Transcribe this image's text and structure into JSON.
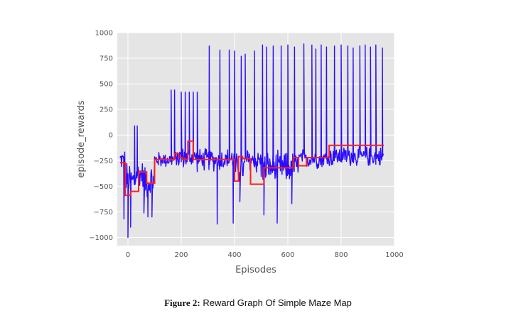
{
  "chart_data": {
    "type": "line",
    "title": "",
    "xlabel": "Episodes",
    "ylabel": "episode_rewards",
    "xlim": [
      -40,
      1000
    ],
    "ylim": [
      -1080,
      1000
    ],
    "xticks": [
      0,
      200,
      400,
      600,
      800,
      1000
    ],
    "yticks": [
      -1000,
      -750,
      -500,
      -250,
      0,
      250,
      500,
      750,
      1000
    ],
    "xtick_labels": [
      "0",
      "200",
      "400",
      "600",
      "800",
      "1000"
    ],
    "ytick_labels": [
      "−1000",
      "−750",
      "−500",
      "−250",
      "0",
      "250",
      "500",
      "750",
      "1000"
    ],
    "grid": true,
    "background": "#e5e5e5",
    "series": [
      {
        "color": "#2a0cff",
        "description_points": "raw per-episode reward, noisy; densely sampled",
        "x_range": [
          -30,
          960
        ],
        "noise_segments": [
          {
            "x": [
              -30,
              -10
            ],
            "center": -240,
            "spread": 110
          },
          {
            "x": [
              -10,
              30
            ],
            "center": -450,
            "spread": 220
          },
          {
            "x": [
              30,
              60
            ],
            "center": -380,
            "spread": 160
          },
          {
            "x": [
              60,
              100
            ],
            "center": -450,
            "spread": 190
          },
          {
            "x": [
              100,
              180
            ],
            "center": -240,
            "spread": 90
          },
          {
            "x": [
              180,
              260
            ],
            "center": -220,
            "spread": 120
          },
          {
            "x": [
              260,
              400
            ],
            "center": -240,
            "spread": 130
          },
          {
            "x": [
              400,
              440
            ],
            "center": -330,
            "spread": 180
          },
          {
            "x": [
              440,
              500
            ],
            "center": -250,
            "spread": 150
          },
          {
            "x": [
              500,
              640
            ],
            "center": -320,
            "spread": 180
          },
          {
            "x": [
              640,
              760
            ],
            "center": -230,
            "spread": 110
          },
          {
            "x": [
              760,
              960
            ],
            "center": -210,
            "spread": 110
          }
        ],
        "spikes": [
          {
            "x": 25,
            "y": 90
          },
          {
            "x": 35,
            "y": 90
          },
          {
            "x": 162,
            "y": 440
          },
          {
            "x": 175,
            "y": 440
          },
          {
            "x": 200,
            "y": 420
          },
          {
            "x": 215,
            "y": 420
          },
          {
            "x": 230,
            "y": 420
          },
          {
            "x": 245,
            "y": 420
          },
          {
            "x": 260,
            "y": 420
          },
          {
            "x": 305,
            "y": 870
          },
          {
            "x": 345,
            "y": 830
          },
          {
            "x": 380,
            "y": 830
          },
          {
            "x": 400,
            "y": 820
          },
          {
            "x": 425,
            "y": 770
          },
          {
            "x": 440,
            "y": 790
          },
          {
            "x": 475,
            "y": 820
          },
          {
            "x": 505,
            "y": 880
          },
          {
            "x": 520,
            "y": 860
          },
          {
            "x": 545,
            "y": 870
          },
          {
            "x": 575,
            "y": 870
          },
          {
            "x": 600,
            "y": 880
          },
          {
            "x": 625,
            "y": 860
          },
          {
            "x": 660,
            "y": 890
          },
          {
            "x": 690,
            "y": 880
          },
          {
            "x": 705,
            "y": 840
          },
          {
            "x": 725,
            "y": 880
          },
          {
            "x": 745,
            "y": 860
          },
          {
            "x": 775,
            "y": 870
          },
          {
            "x": 800,
            "y": 880
          },
          {
            "x": 825,
            "y": 870
          },
          {
            "x": 845,
            "y": 850
          },
          {
            "x": 870,
            "y": 870
          },
          {
            "x": 890,
            "y": 880
          },
          {
            "x": 910,
            "y": 860
          },
          {
            "x": 930,
            "y": 880
          },
          {
            "x": 955,
            "y": 850
          }
        ],
        "dips": [
          {
            "x": -15,
            "y": -820
          },
          {
            "x": 0,
            "y": -1000
          },
          {
            "x": 10,
            "y": -900
          },
          {
            "x": 60,
            "y": -760
          },
          {
            "x": 75,
            "y": -800
          },
          {
            "x": 90,
            "y": -800
          },
          {
            "x": 335,
            "y": -870
          },
          {
            "x": 395,
            "y": -860
          },
          {
            "x": 420,
            "y": -650
          },
          {
            "x": 510,
            "y": -780
          },
          {
            "x": 560,
            "y": -860
          },
          {
            "x": 615,
            "y": -670
          }
        ]
      },
      {
        "color": "#ff1f1f",
        "description_points": "stepped moving average",
        "x": [
          -30,
          -10,
          -10,
          10,
          10,
          40,
          40,
          70,
          70,
          100,
          100,
          175,
          175,
          190,
          190,
          205,
          205,
          225,
          225,
          245,
          245,
          400,
          400,
          415,
          415,
          430,
          430,
          460,
          460,
          490,
          490,
          510,
          510,
          620,
          620,
          640,
          640,
          670,
          670,
          700,
          700,
          755,
          755,
          960
        ],
        "y": [
          -270,
          -270,
          -590,
          -590,
          -550,
          -550,
          -360,
          -360,
          -470,
          -470,
          -240,
          -240,
          -180,
          -180,
          -220,
          -220,
          -240,
          -240,
          -60,
          -60,
          -240,
          -240,
          -450,
          -450,
          -210,
          -210,
          -230,
          -230,
          -480,
          -480,
          -480,
          -480,
          -320,
          -320,
          -220,
          -220,
          -300,
          -300,
          -220,
          -220,
          -220,
          -220,
          -100,
          -100
        ]
      }
    ]
  },
  "caption": {
    "label": "Figure 2:",
    "text": "Reward Graph Of Simple Maze Map"
  }
}
